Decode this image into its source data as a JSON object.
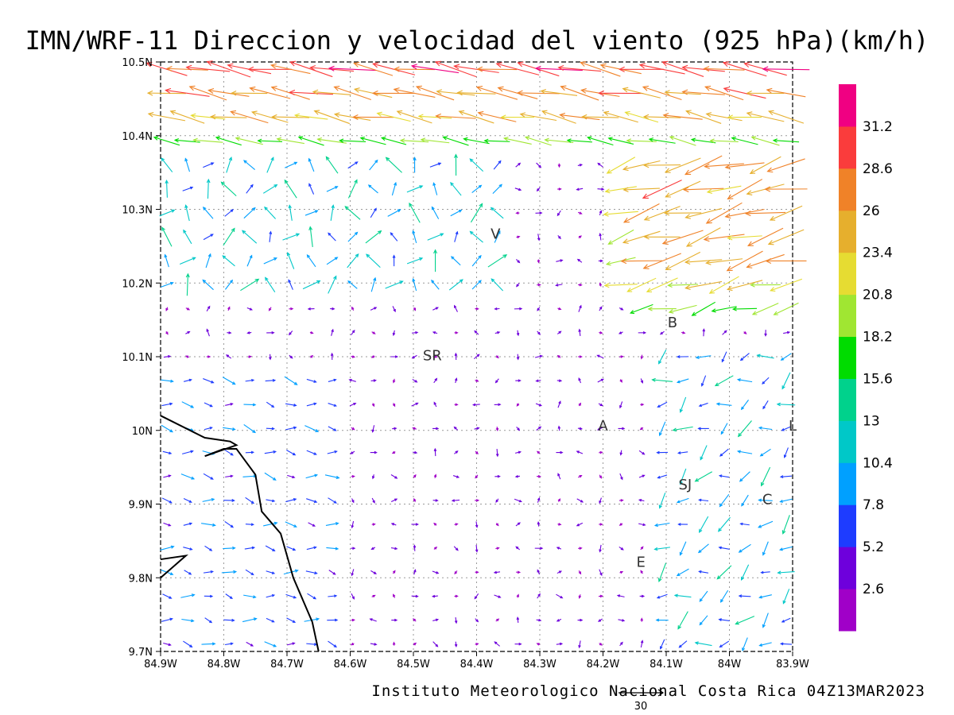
{
  "chart_data": {
    "type": "vector-field",
    "title": "IMN/WRF-11 Direccion y velocidad del viento (925 hPa)(km/h)",
    "credit": "Instituto Meteorologico Nacional Costa Rica 04Z13MAR2023",
    "units": "km/h",
    "reference_vector": {
      "value": "30"
    },
    "xlim": [
      -84.9,
      -83.9
    ],
    "ylim": [
      9.7,
      10.5
    ],
    "x_ticks": [
      {
        "value": -84.9,
        "label": "84.9W"
      },
      {
        "value": -84.8,
        "label": "84.8W"
      },
      {
        "value": -84.7,
        "label": "84.7W"
      },
      {
        "value": -84.6,
        "label": "84.6W"
      },
      {
        "value": -84.5,
        "label": "84.5W"
      },
      {
        "value": -84.4,
        "label": "84.4W"
      },
      {
        "value": -84.3,
        "label": "84.3W"
      },
      {
        "value": -84.2,
        "label": "84.2W"
      },
      {
        "value": -84.1,
        "label": "84.1W"
      },
      {
        "value": -84.0,
        "label": "84W"
      },
      {
        "value": -83.9,
        "label": "83.9W"
      }
    ],
    "y_ticks": [
      {
        "value": 9.7,
        "label": "9.7N"
      },
      {
        "value": 9.8,
        "label": "9.8N"
      },
      {
        "value": 9.9,
        "label": "9.9N"
      },
      {
        "value": 10.0,
        "label": "10N"
      },
      {
        "value": 10.1,
        "label": "10.1N"
      },
      {
        "value": 10.2,
        "label": "10.2N"
      },
      {
        "value": 10.3,
        "label": "10.3N"
      },
      {
        "value": 10.4,
        "label": "10.4N"
      },
      {
        "value": 10.5,
        "label": "10.5N"
      }
    ],
    "grid": true,
    "legend": "right",
    "colorbar": {
      "levels": [
        {
          "color": "#a000c8",
          "label": "2.6"
        },
        {
          "color": "#6e00dc",
          "label": "5.2"
        },
        {
          "color": "#1e3cff",
          "label": "7.8"
        },
        {
          "color": "#00a0ff",
          "label": "10.4"
        },
        {
          "color": "#00c8c8",
          "label": "13"
        },
        {
          "color": "#00d28c",
          "label": "15.6"
        },
        {
          "color": "#00dc00",
          "label": "18.2"
        },
        {
          "color": "#a0e632",
          "label": "20.8"
        },
        {
          "color": "#e6dc32",
          "label": "23.4"
        },
        {
          "color": "#e6af2d",
          "label": "26"
        },
        {
          "color": "#f08228",
          "label": "28.6"
        },
        {
          "color": "#fa3c3c",
          "label": "31.2"
        },
        {
          "color": "#f00082",
          "label": ""
        }
      ]
    },
    "places": [
      {
        "label": "V",
        "lon": -84.37,
        "lat": 10.26
      },
      {
        "label": "SR",
        "lon": -84.47,
        "lat": 10.095
      },
      {
        "label": "B",
        "lon": -84.09,
        "lat": 10.14
      },
      {
        "label": "A",
        "lon": -84.2,
        "lat": 10.0
      },
      {
        "label": "SJ",
        "lon": -84.07,
        "lat": 9.92
      },
      {
        "label": "C",
        "lon": -83.94,
        "lat": 9.9
      },
      {
        "label": "E",
        "lon": -84.14,
        "lat": 9.815
      },
      {
        "label": "L",
        "lon": -83.9,
        "lat": 10.0
      }
    ],
    "coastline": [
      [
        -84.9,
        10.02
      ],
      [
        -84.83,
        9.99
      ],
      [
        -84.79,
        9.985
      ],
      [
        -84.78,
        9.98
      ],
      [
        -84.83,
        9.965
      ],
      [
        -84.8,
        9.975
      ],
      [
        -84.78,
        9.975
      ],
      [
        -84.75,
        9.94
      ],
      [
        -84.74,
        9.89
      ],
      [
        -84.71,
        9.86
      ],
      [
        -84.69,
        9.8
      ],
      [
        -84.66,
        9.74
      ],
      [
        -84.65,
        9.7
      ]
    ],
    "coastline_2": [
      [
        -84.9,
        9.8
      ],
      [
        -84.88,
        9.815
      ],
      [
        -84.86,
        9.83
      ],
      [
        -84.9,
        9.825
      ]
    ],
    "wind_field": {
      "description": "Gridded wind vectors (u toward east, v toward north) in km/h, 0.0333 deg spacing",
      "nx": 31,
      "ny": 25,
      "regions": [
        {
          "name": "northern-easterly-jet",
          "lat_min": 10.37,
          "speed_range": [
            20,
            33
          ],
          "direction_deg": 265
        },
        {
          "name": "northeast-jet",
          "lon_min": -84.2,
          "lat_min": 10.15,
          "speed_range": [
            15,
            28
          ],
          "direction_deg": 250
        },
        {
          "name": "central-light-flow",
          "speed_range": [
            1,
            6
          ]
        },
        {
          "name": "southwest-lowland-flow",
          "lon_max": -84.6,
          "lat_max": 10.05,
          "speed_range": [
            5,
            11
          ],
          "direction_deg": 80
        },
        {
          "name": "eastern-valley-flow",
          "lon_min": -84.1,
          "lat_max": 10.1,
          "speed_range": [
            6,
            16
          ],
          "direction_deg": 200
        }
      ]
    }
  }
}
